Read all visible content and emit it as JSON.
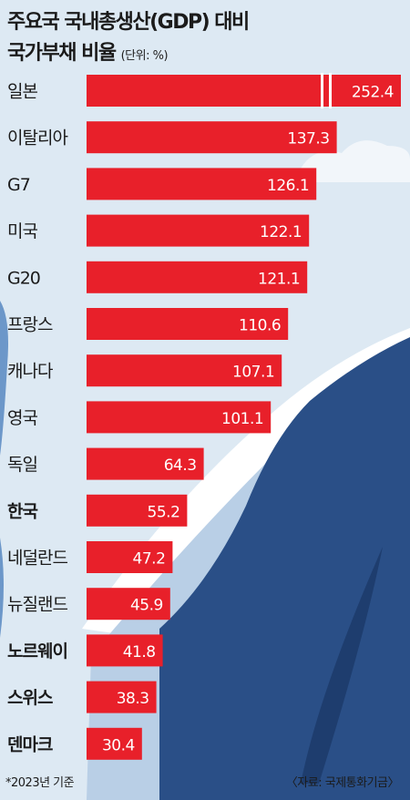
{
  "title_line1": "주요국 국내총생산(GDP) 대비",
  "title_line2": "국가부채 비율",
  "unit_label": "(단위: %)",
  "footnote_left": "*2023년 기준",
  "footnote_right": "〈자료: 국제통화기금〉",
  "colors": {
    "bar": "#e8202a",
    "bar_text": "#ffffff",
    "label_normal": "#1b1b1b",
    "sky": "#dde9f3",
    "sea": "#2a4f87",
    "wave": "#ffffff"
  },
  "chart_data": {
    "type": "bar",
    "orientation": "horizontal",
    "categories": [
      "일본",
      "이탈리아",
      "G7",
      "미국",
      "G20",
      "프랑스",
      "캐나다",
      "영국",
      "독일",
      "한국",
      "네덜란드",
      "뉴질랜드",
      "노르웨이",
      "스위스",
      "덴마크"
    ],
    "values": [
      252.4,
      137.3,
      126.1,
      122.1,
      121.1,
      110.6,
      107.1,
      101.1,
      64.3,
      55.2,
      47.2,
      45.9,
      41.8,
      38.3,
      30.4
    ],
    "bold_categories": [
      "한국",
      "노르웨이",
      "스위스",
      "덴마크"
    ],
    "broken_axis_categories": [
      "일본"
    ],
    "title": "주요국 국내총생산(GDP) 대비 국가부채 비율",
    "xlabel": "",
    "ylabel": "",
    "unit": "%"
  }
}
